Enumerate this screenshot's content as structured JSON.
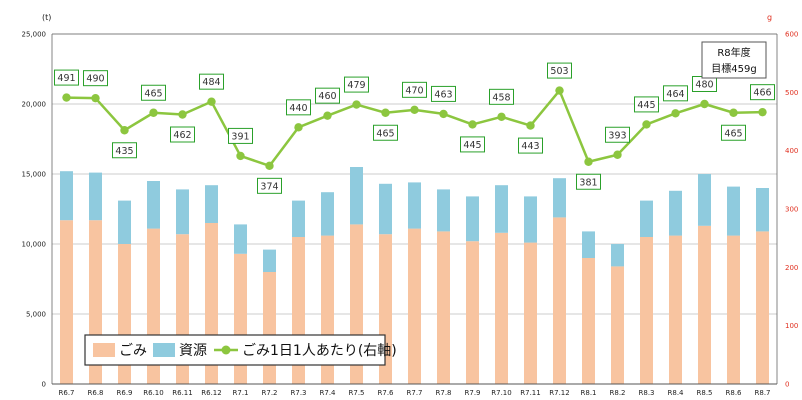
{
  "chart_data": {
    "type": "bar",
    "categories": [
      "R6.7",
      "R6.8",
      "R6.9",
      "R6.10",
      "R6.11",
      "R6.12",
      "R7.1",
      "R7.2",
      "R7.3",
      "R7.4",
      "R7.5",
      "R7.6",
      "R7.7",
      "R7.8",
      "R7.9",
      "R7.10",
      "R7.11",
      "R7.12",
      "R8.1",
      "R8.2",
      "R8.3",
      "R8.4",
      "R8.5",
      "R8.6",
      "R8.7"
    ],
    "series": [
      {
        "name": "ごみ",
        "type": "bar",
        "axis": "left",
        "color": "#f8c4a0",
        "values": [
          11700,
          11700,
          10000,
          11100,
          10700,
          11500,
          9300,
          8000,
          10500,
          10600,
          11400,
          10700,
          11100,
          10900,
          10200,
          10800,
          10100,
          11900,
          9000,
          8400,
          10500,
          10600,
          11300,
          10600,
          10900
        ]
      },
      {
        "name": "資源",
        "type": "bar",
        "axis": "left",
        "color": "#8fcbde",
        "values": [
          3500,
          3400,
          3100,
          3400,
          3200,
          2700,
          2100,
          1600,
          2600,
          3100,
          4100,
          3600,
          3300,
          3000,
          3200,
          3400,
          3300,
          2800,
          1900,
          1600,
          2600,
          3200,
          3700,
          3500,
          3100
        ]
      },
      {
        "name": "ごみ1日1人あたり(右軸)",
        "type": "line",
        "axis": "right",
        "color": "#8cc63f",
        "values": [
          491,
          490,
          435,
          465,
          462,
          484,
          391,
          374,
          440,
          460,
          479,
          465,
          470,
          463,
          445,
          458,
          443,
          503,
          381,
          393,
          445,
          464,
          480,
          465,
          466
        ]
      }
    ],
    "y_left": {
      "unit": "(t)",
      "min": 0,
      "max": 25000,
      "ticks": [
        "0",
        "5,000",
        "10,000",
        "15,000",
        "20,000",
        "25,000"
      ]
    },
    "y_right": {
      "unit": "g",
      "min": 0,
      "max": 600,
      "ticks": [
        "0",
        "100",
        "200",
        "300",
        "400",
        "500",
        "600"
      ]
    },
    "grid": true,
    "legend_position": "bottom-left",
    "target_box": {
      "line1": "R8年度",
      "line2": "目標459g"
    }
  },
  "colors": {
    "bar_gomi": "#f8c4a0",
    "bar_shigen": "#8fcbde",
    "line": "#8cc63f",
    "label_border": "#2aa02a",
    "right_axis": "#e03020"
  }
}
